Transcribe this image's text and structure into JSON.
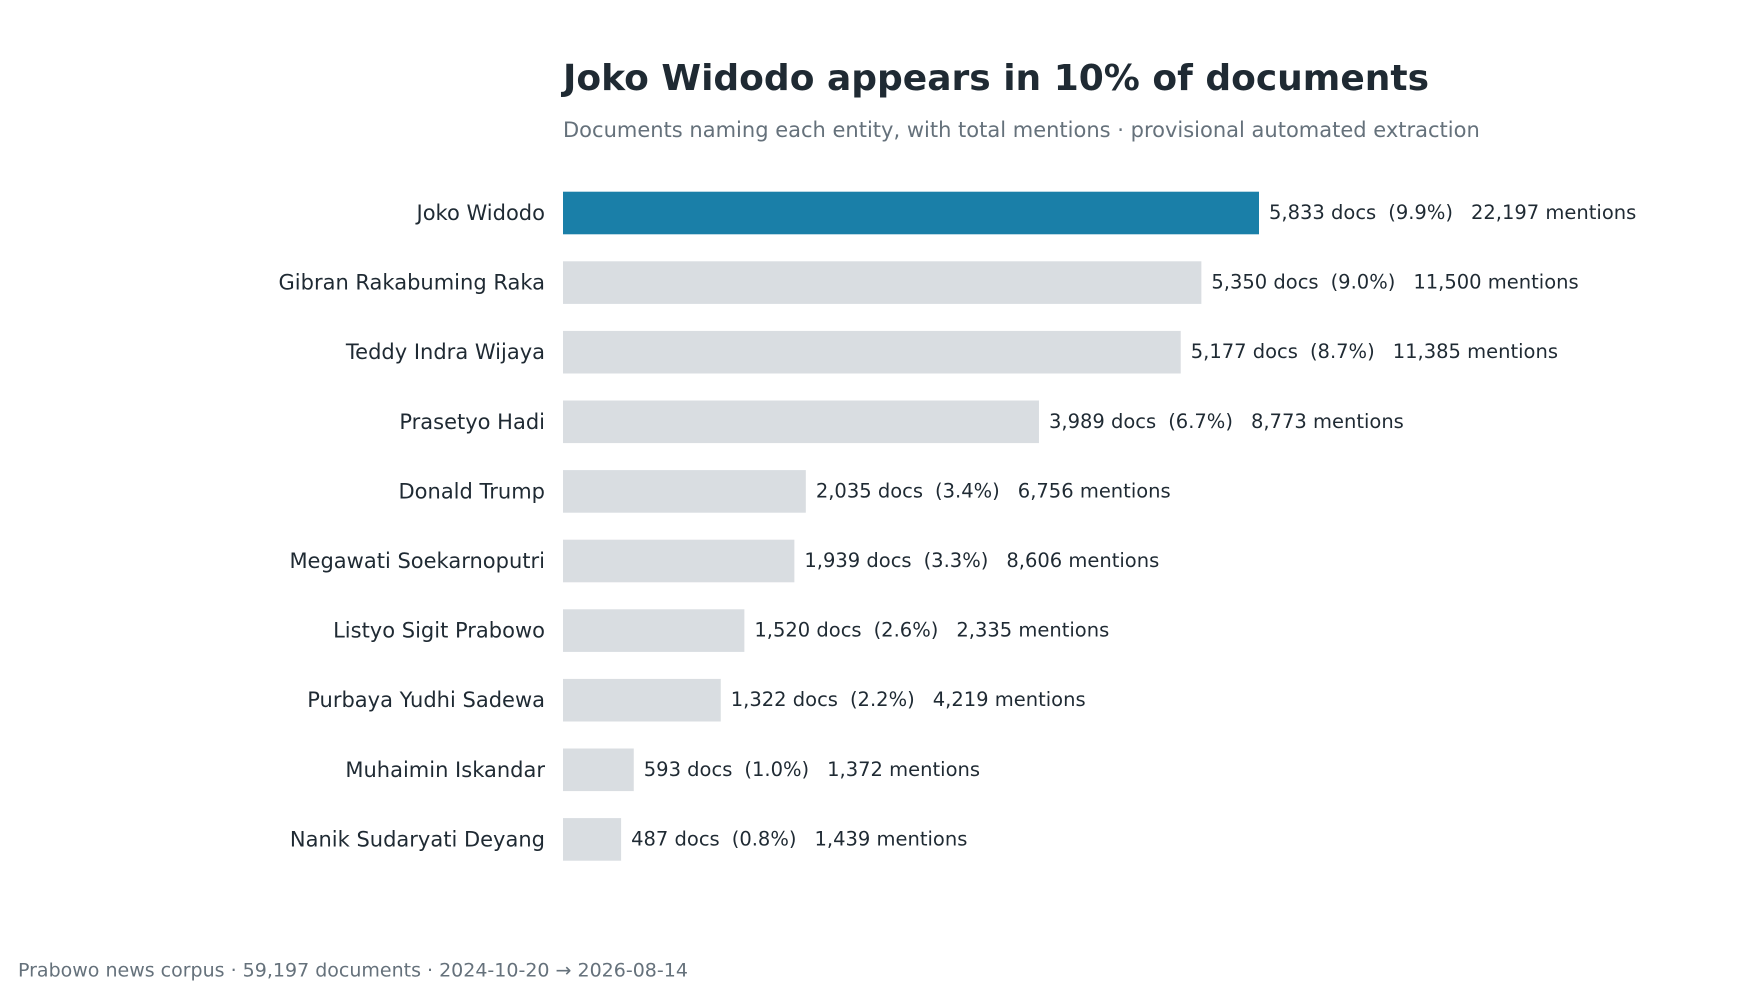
{
  "chart_data": {
    "type": "bar",
    "title": "Joko Widodo appears in 10% of documents",
    "subtitle": "Documents naming each entity, with total mentions · provisional automated extraction",
    "categories": [
      "Joko Widodo",
      "Gibran Rakabuming Raka",
      "Teddy Indra Wijaya",
      "Prasetyo Hadi",
      "Donald Trump",
      "Megawati Soekarnoputri",
      "Listyo Sigit Prabowo",
      "Purbaya Yudhi Sadewa",
      "Muhaimin Iskandar",
      "Nanik Sudaryati Deyang"
    ],
    "values": [
      5833,
      5350,
      5177,
      3989,
      2035,
      1939,
      1520,
      1322,
      593,
      487
    ],
    "value_labels": [
      "5,833 docs",
      "5,350 docs",
      "5,177 docs",
      "3,989 docs",
      "2,035 docs",
      "1,939 docs",
      "1,520 docs",
      "1,322 docs",
      "593 docs",
      "487 docs"
    ],
    "shares": [
      9.9,
      9.0,
      8.7,
      6.7,
      3.4,
      3.3,
      2.6,
      2.2,
      1.0,
      0.8
    ],
    "share_labels": [
      "(9.9%)",
      "(9.0%)",
      "(8.7%)",
      "(6.7%)",
      "(3.4%)",
      "(3.3%)",
      "(2.6%)",
      "(2.2%)",
      "(1.0%)",
      "(0.8%)"
    ],
    "mentions": [
      22197,
      11500,
      11385,
      8773,
      6756,
      8606,
      2335,
      4219,
      1372,
      1439
    ],
    "mention_labels": [
      "22,197 mentions",
      "11,500 mentions",
      "11,385 mentions",
      "8,773 mentions",
      "6,756 mentions",
      "8,606 mentions",
      "2,335 mentions",
      "4,219 mentions",
      "1,372 mentions",
      "1,439 mentions"
    ],
    "colors": [
      "#1a7fa8",
      "#d9dde1",
      "#d9dde1",
      "#d9dde1",
      "#d9dde1",
      "#d9dde1",
      "#d9dde1",
      "#d9dde1",
      "#d9dde1",
      "#d9dde1"
    ],
    "footer": "Prabowo news corpus · 59,197 documents · 2024-10-20 → 2026-08-14"
  }
}
